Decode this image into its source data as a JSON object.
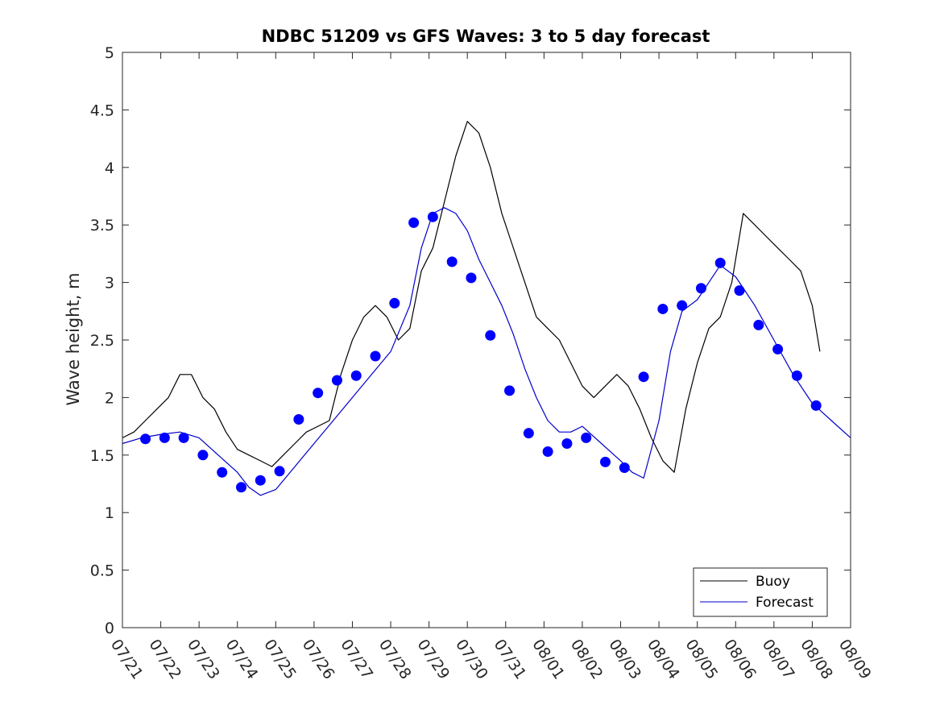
{
  "chart_data": {
    "type": "line",
    "title": "NDBC 51209 vs GFS Waves: 3 to 5 day forecast",
    "xlabel": "",
    "ylabel": "Wave height, m",
    "x_tick_labels": [
      "07/21",
      "07/22",
      "07/23",
      "07/24",
      "07/25",
      "07/26",
      "07/27",
      "07/28",
      "07/29",
      "07/30",
      "07/31",
      "08/01",
      "08/02",
      "08/03",
      "08/04",
      "08/05",
      "08/06",
      "08/07",
      "08/08",
      "08/09"
    ],
    "y_tick_labels": [
      "0",
      "0.5",
      "1",
      "1.5",
      "2",
      "2.5",
      "3",
      "3.5",
      "4",
      "4.5",
      "5"
    ],
    "xlim": [
      0,
      19
    ],
    "ylim": [
      0,
      5
    ],
    "grid": false,
    "legend_position": "bottom-right",
    "legend": [
      {
        "label": "Buoy",
        "color": "#000000"
      },
      {
        "label": "Forecast",
        "color": "#0000cc"
      }
    ],
    "series": [
      {
        "name": "Buoy",
        "color": "#000000",
        "x": [
          0.0,
          0.3,
          0.6,
          0.9,
          1.2,
          1.5,
          1.8,
          2.1,
          2.4,
          2.7,
          3.0,
          3.3,
          3.6,
          3.9,
          4.2,
          4.5,
          4.8,
          5.1,
          5.4,
          5.7,
          6.0,
          6.3,
          6.6,
          6.9,
          7.2,
          7.5,
          7.8,
          8.1,
          8.4,
          8.7,
          9.0,
          9.3,
          9.6,
          9.9,
          10.2,
          10.5,
          10.8,
          11.1,
          11.4,
          11.7,
          12.0,
          12.3,
          12.6,
          12.9,
          13.2,
          13.5,
          13.8,
          14.1,
          14.4,
          14.7,
          15.0,
          15.3,
          15.6,
          15.9,
          16.2,
          16.5,
          16.8,
          17.1,
          17.4,
          17.7,
          18.0,
          18.2
        ],
        "values": [
          1.65,
          1.7,
          1.8,
          1.9,
          2.0,
          2.2,
          2.2,
          2.0,
          1.9,
          1.7,
          1.55,
          1.5,
          1.45,
          1.4,
          1.5,
          1.6,
          1.7,
          1.75,
          1.8,
          2.2,
          2.5,
          2.7,
          2.8,
          2.7,
          2.5,
          2.6,
          3.1,
          3.3,
          3.7,
          4.1,
          4.4,
          4.3,
          4.0,
          3.6,
          3.3,
          3.0,
          2.7,
          2.6,
          2.5,
          2.3,
          2.1,
          2.0,
          2.1,
          2.2,
          2.1,
          1.9,
          1.65,
          1.45,
          1.35,
          1.9,
          2.3,
          2.6,
          2.7,
          3.0,
          3.6,
          3.5,
          3.4,
          3.3,
          3.2,
          3.1,
          2.8,
          2.4
        ]
      },
      {
        "name": "Forecast",
        "color": "#0000cc",
        "x": [
          0.0,
          0.5,
          1.0,
          1.5,
          2.0,
          2.5,
          3.0,
          3.3,
          3.6,
          4.0,
          4.5,
          5.0,
          5.5,
          6.0,
          6.5,
          7.0,
          7.5,
          7.8,
          8.1,
          8.4,
          8.7,
          9.0,
          9.3,
          9.6,
          9.9,
          10.2,
          10.5,
          10.8,
          11.1,
          11.4,
          11.7,
          12.0,
          12.5,
          13.0,
          13.3,
          13.6,
          14.0,
          14.3,
          14.6,
          15.0,
          15.3,
          15.6,
          16.0,
          16.5,
          17.0,
          17.5,
          18.0,
          18.5,
          19.0
        ],
        "values": [
          1.6,
          1.65,
          1.68,
          1.7,
          1.65,
          1.5,
          1.35,
          1.22,
          1.15,
          1.2,
          1.4,
          1.6,
          1.8,
          2.0,
          2.2,
          2.4,
          2.8,
          3.3,
          3.6,
          3.65,
          3.6,
          3.45,
          3.2,
          3.0,
          2.8,
          2.55,
          2.25,
          2.0,
          1.8,
          1.7,
          1.7,
          1.75,
          1.6,
          1.45,
          1.35,
          1.3,
          1.8,
          2.4,
          2.75,
          2.85,
          3.0,
          3.15,
          3.05,
          2.8,
          2.5,
          2.2,
          1.95,
          1.8,
          1.65
        ]
      },
      {
        "name": "",
        "kind": "markers",
        "color": "#0000ff",
        "x": [
          0.6,
          1.1,
          1.6,
          2.1,
          2.6,
          3.1,
          3.6,
          4.1,
          4.6,
          5.1,
          5.6,
          6.1,
          6.6,
          7.1,
          7.6,
          8.1,
          8.6,
          9.1,
          9.6,
          10.1,
          10.6,
          11.1,
          11.6,
          12.1,
          12.6,
          13.1,
          13.6,
          14.1,
          14.6,
          15.1,
          15.6,
          16.1,
          16.6,
          17.1,
          17.6,
          18.1
        ],
        "values": [
          1.64,
          1.65,
          1.65,
          1.5,
          1.35,
          1.22,
          1.28,
          1.36,
          1.81,
          2.04,
          2.15,
          2.19,
          2.36,
          2.82,
          3.52,
          3.57,
          3.18,
          3.04,
          2.54,
          2.06,
          1.69,
          1.53,
          1.6,
          1.65,
          1.44,
          1.39,
          2.18,
          2.77,
          2.8,
          2.95,
          3.17,
          2.93,
          2.63,
          2.42,
          2.19,
          1.93
        ]
      }
    ]
  }
}
